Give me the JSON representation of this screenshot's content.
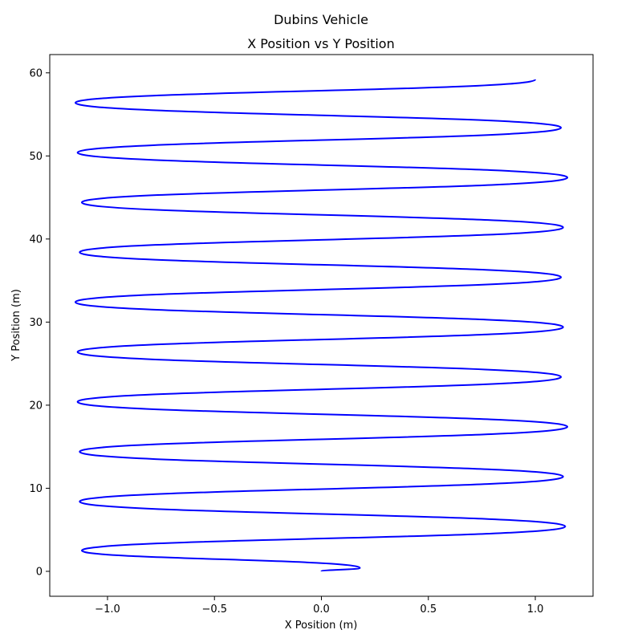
{
  "figure": {
    "suptitle": "Dubins Vehicle"
  },
  "chart_data": {
    "type": "line",
    "title": "X Position vs Y Position",
    "xlabel": "X Position (m)",
    "ylabel": "Y Position (m)",
    "xlim": [
      -1.27,
      1.27
    ],
    "ylim": [
      -3.0,
      62.2
    ],
    "grid": false,
    "xticks": [
      -1.0,
      -0.5,
      0.0,
      0.5,
      1.0
    ],
    "xtick_labels": [
      "−1.0",
      "−0.5",
      "0.0",
      "0.5",
      "1.0"
    ],
    "yticks": [
      0,
      10,
      20,
      30,
      40,
      50,
      60
    ],
    "ytick_labels": [
      "0",
      "10",
      "20",
      "30",
      "40",
      "50",
      "60"
    ],
    "series": [
      {
        "color": "#0000ff",
        "line_width": 2,
        "points": [
          [
            0.0,
            0.0
          ],
          [
            0.18,
            0.4
          ],
          [
            -1.12,
            2.5
          ],
          [
            1.14,
            5.4
          ],
          [
            -1.13,
            8.4
          ],
          [
            1.13,
            11.4
          ],
          [
            -1.13,
            14.4
          ],
          [
            1.15,
            17.4
          ],
          [
            -1.14,
            20.4
          ],
          [
            1.12,
            23.4
          ],
          [
            -1.14,
            26.4
          ],
          [
            1.13,
            29.4
          ],
          [
            -1.15,
            32.4
          ],
          [
            1.12,
            35.4
          ],
          [
            -1.13,
            38.4
          ],
          [
            1.13,
            41.4
          ],
          [
            -1.12,
            44.4
          ],
          [
            1.15,
            47.4
          ],
          [
            -1.14,
            50.4
          ],
          [
            1.12,
            53.4
          ],
          [
            -1.15,
            56.4
          ],
          [
            1.0,
            59.2
          ]
        ]
      }
    ]
  }
}
